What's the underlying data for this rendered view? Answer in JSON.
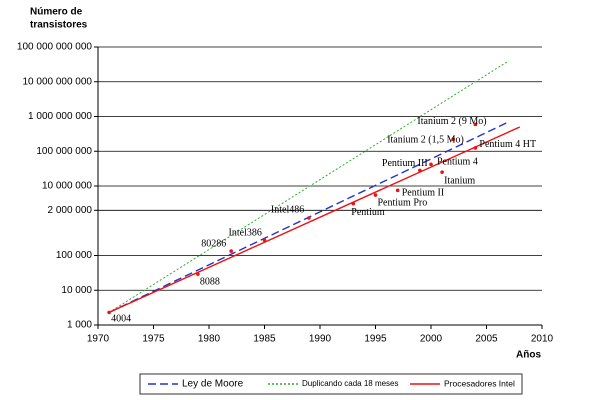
{
  "chart_data": {
    "type": "line",
    "y_label": [
      "Número de",
      "transistores"
    ],
    "x_label": "Años",
    "log_y": true,
    "grid": true,
    "xlim": [
      1970,
      2010
    ],
    "xticks": [
      1970,
      1975,
      1980,
      1985,
      1990,
      1995,
      2000,
      2005,
      2010
    ],
    "ylim": [
      1000,
      100000000000
    ],
    "yticks": [
      {
        "value": 1000,
        "label": "1 000"
      },
      {
        "value": 10000,
        "label": "10 000"
      },
      {
        "value": 100000,
        "label": "100 000"
      },
      {
        "value": 2000000,
        "label": "2 000 000"
      },
      {
        "value": 10000000,
        "label": "10 000 000"
      },
      {
        "value": 100000000,
        "label": "100 000 000"
      },
      {
        "value": 1000000000,
        "label": "1 000 000 000"
      },
      {
        "value": 10000000000,
        "label": "10 000 000 000"
      },
      {
        "value": 100000000000,
        "label": "100 000 000 000"
      }
    ],
    "series": [
      {
        "name": "Ley de Moore",
        "color": "#2233cc",
        "style": "dashed",
        "x": [
          1971,
          2007
        ],
        "values": [
          2300,
          700000000
        ]
      },
      {
        "name": "Duplicando cada 18 meses",
        "color": "#33aa33",
        "style": "dotted",
        "x": [
          1971,
          2007
        ],
        "values": [
          2300,
          40000000000
        ]
      },
      {
        "name": "Procesadores Intel",
        "color": "#ee1111",
        "style": "solid",
        "x": [
          1971,
          2008
        ],
        "values": [
          2300,
          500000000
        ]
      }
    ],
    "processors": {
      "color": "#ee1111",
      "names": [
        "4004",
        "8088",
        "80286",
        "Intel386",
        "Intel486",
        "Pentium",
        "Pentium Pro",
        "Pentium II",
        "Pentium III",
        "Pentium 4",
        "Itanium",
        "Pentium 4 HT",
        "Itanium 2 (1,5 Mo)",
        "Itanium 2 (9 Mo)"
      ],
      "x": [
        1971,
        1979,
        1982,
        1985,
        1989,
        1993,
        1995,
        1997,
        1999,
        2000,
        2001,
        2004,
        2002,
        2004
      ],
      "values": [
        2300,
        29000,
        134000,
        275000,
        1200000,
        3100000,
        5500000,
        7500000,
        28000000,
        42000000,
        25000000,
        125000000,
        220000000,
        590000000
      ]
    }
  }
}
